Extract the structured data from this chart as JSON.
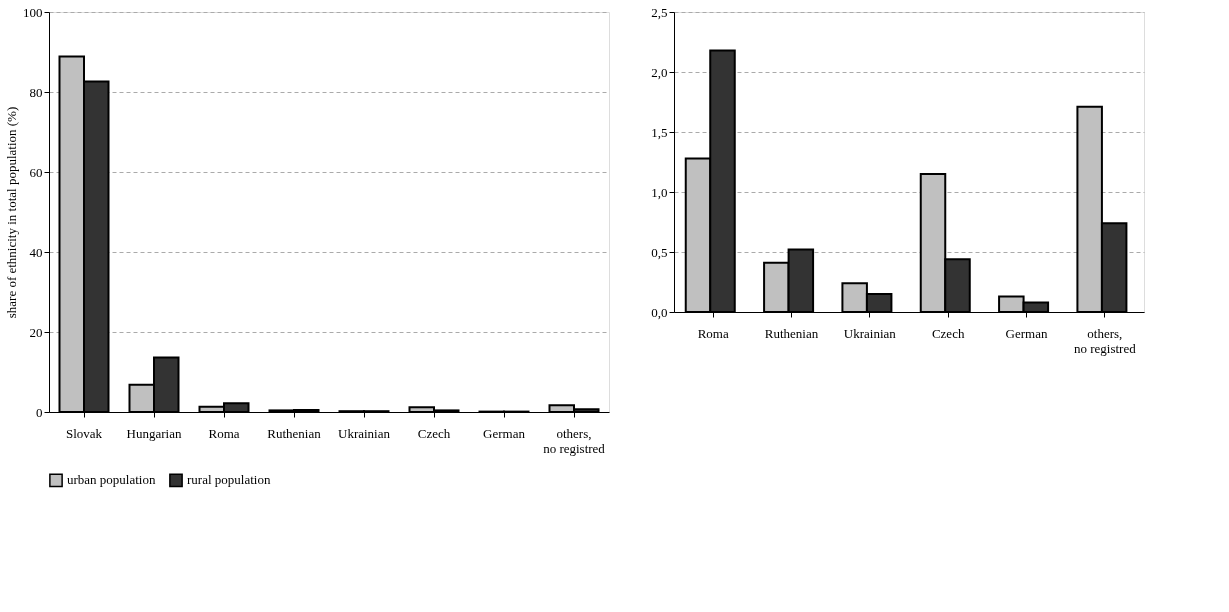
{
  "chart_data": [
    {
      "type": "bar",
      "ylabel": "share of ethnicity in total population (%)",
      "categories": [
        "Slovak",
        "Hungarian",
        "Roma",
        "Ruthenian",
        "Ukrainian",
        "Czech",
        "German",
        "others, no registred"
      ],
      "series": [
        {
          "name": "urban population",
          "color": "#c0c0c0",
          "values": [
            88.9,
            6.8,
            1.3,
            0.4,
            0.2,
            1.2,
            0.1,
            1.7
          ]
        },
        {
          "name": "rural population",
          "color": "#333333",
          "values": [
            82.6,
            13.6,
            2.2,
            0.5,
            0.2,
            0.4,
            0.1,
            0.7
          ]
        }
      ],
      "ylim": [
        0,
        100
      ],
      "yticks": [
        0,
        20,
        40,
        60,
        80,
        100
      ],
      "grid": "y",
      "legend": "bottom"
    },
    {
      "type": "bar",
      "categories": [
        "Roma",
        "Ruthenian",
        "Ukrainian",
        "Czech",
        "German",
        "others, no registred"
      ],
      "series": [
        {
          "color": "#c0c0c0",
          "values": [
            1.28,
            0.41,
            0.24,
            1.15,
            0.13,
            1.71
          ]
        },
        {
          "color": "#333333",
          "values": [
            2.18,
            0.52,
            0.15,
            0.44,
            0.08,
            0.74
          ]
        }
      ],
      "ylim": [
        0,
        2.5
      ],
      "yticks": [
        {
          "value": 0,
          "label": "0,0"
        },
        {
          "value": 0.5,
          "label": "0,5"
        },
        {
          "value": 1,
          "label": "1,0"
        },
        {
          "value": 1.5,
          "label": "1,5"
        },
        {
          "value": 2,
          "label": "2,0"
        },
        {
          "value": 2.5,
          "label": "2,5"
        }
      ],
      "grid": "y"
    }
  ]
}
